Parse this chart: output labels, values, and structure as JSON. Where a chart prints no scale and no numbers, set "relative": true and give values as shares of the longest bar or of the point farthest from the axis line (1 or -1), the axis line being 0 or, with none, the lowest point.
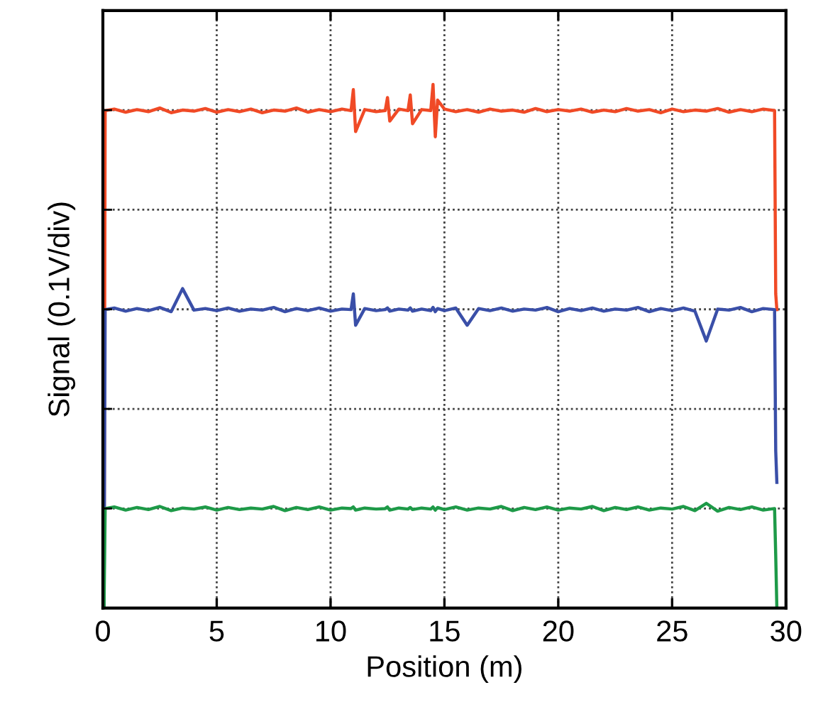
{
  "chart_data": {
    "type": "line",
    "xlabel": "Position (m)",
    "ylabel": "Signal (0.1V/div)",
    "relative": true,
    "grid": true,
    "xlim": [
      0,
      30
    ],
    "xticks": [
      0,
      5,
      10,
      15,
      20,
      25,
      30
    ],
    "x": [
      0.05,
      0.1,
      0.5,
      1,
      1.5,
      2,
      2.5,
      3,
      3.5,
      4,
      4.5,
      5,
      5.5,
      6,
      6.5,
      7,
      7.5,
      8,
      8.5,
      9,
      9.5,
      10,
      10.5,
      10.9,
      11.0,
      11.1,
      11.5,
      12,
      12.4,
      12.5,
      12.6,
      13,
      13.4,
      13.5,
      13.6,
      14,
      14.4,
      14.5,
      14.6,
      14.7,
      15,
      15.5,
      16,
      16.5,
      17,
      17.5,
      18,
      18.5,
      19,
      19.5,
      20,
      20.5,
      21,
      21.5,
      22,
      22.5,
      23,
      23.5,
      24,
      24.5,
      25,
      25.5,
      26,
      26.5,
      27,
      27.5,
      28,
      28.5,
      29,
      29.5,
      29.55,
      29.6
    ],
    "series": [
      {
        "color": "#f04a26",
        "values": [
          0,
          0.95,
          0.953,
          0.947,
          0.952,
          0.948,
          0.955,
          0.946,
          0.951,
          0.949,
          0.954,
          0.947,
          0.952,
          0.948,
          0.953,
          0.946,
          0.951,
          0.949,
          0.955,
          0.947,
          0.952,
          0.948,
          0.953,
          0.95,
          0.99,
          0.91,
          0.952,
          0.948,
          0.95,
          0.975,
          0.93,
          0.953,
          0.95,
          0.98,
          0.925,
          0.952,
          0.95,
          1.0,
          0.9,
          0.97,
          0.953,
          0.948,
          0.952,
          0.947,
          0.953,
          0.949,
          0.951,
          0.947,
          0.954,
          0.948,
          0.952,
          0.949,
          0.953,
          0.947,
          0.951,
          0.948,
          0.954,
          0.949,
          0.952,
          0.946,
          0.953,
          0.948,
          0.951,
          0.949,
          0.954,
          0.947,
          0.952,
          0.948,
          0.953,
          0.95,
          0.6,
          0.57
        ]
      },
      {
        "color": "#3a4fa8",
        "values": [
          0,
          0.57,
          0.573,
          0.567,
          0.572,
          0.568,
          0.574,
          0.566,
          0.61,
          0.569,
          0.572,
          0.568,
          0.573,
          0.567,
          0.571,
          0.569,
          0.574,
          0.566,
          0.572,
          0.568,
          0.573,
          0.567,
          0.571,
          0.57,
          0.6,
          0.54,
          0.572,
          0.568,
          0.57,
          0.573,
          0.567,
          0.571,
          0.569,
          0.573,
          0.567,
          0.571,
          0.568,
          0.574,
          0.566,
          0.572,
          0.568,
          0.573,
          0.54,
          0.572,
          0.568,
          0.573,
          0.567,
          0.571,
          0.569,
          0.574,
          0.566,
          0.572,
          0.568,
          0.573,
          0.567,
          0.571,
          0.569,
          0.574,
          0.566,
          0.572,
          0.568,
          0.573,
          0.567,
          0.51,
          0.571,
          0.569,
          0.574,
          0.566,
          0.572,
          0.57,
          0.3,
          0.24
        ]
      },
      {
        "color": "#1e9a48",
        "values": [
          0,
          0.19,
          0.193,
          0.187,
          0.192,
          0.188,
          0.194,
          0.186,
          0.191,
          0.189,
          0.193,
          0.187,
          0.192,
          0.188,
          0.191,
          0.189,
          0.194,
          0.186,
          0.192,
          0.188,
          0.193,
          0.187,
          0.191,
          0.19,
          0.193,
          0.187,
          0.191,
          0.189,
          0.19,
          0.193,
          0.187,
          0.191,
          0.189,
          0.192,
          0.188,
          0.191,
          0.189,
          0.193,
          0.187,
          0.192,
          0.188,
          0.193,
          0.187,
          0.191,
          0.189,
          0.194,
          0.186,
          0.192,
          0.188,
          0.193,
          0.187,
          0.191,
          0.189,
          0.194,
          0.186,
          0.192,
          0.188,
          0.193,
          0.187,
          0.191,
          0.189,
          0.194,
          0.186,
          0.2,
          0.185,
          0.192,
          0.188,
          0.193,
          0.187,
          0.19,
          0.1,
          0.0
        ]
      }
    ]
  }
}
